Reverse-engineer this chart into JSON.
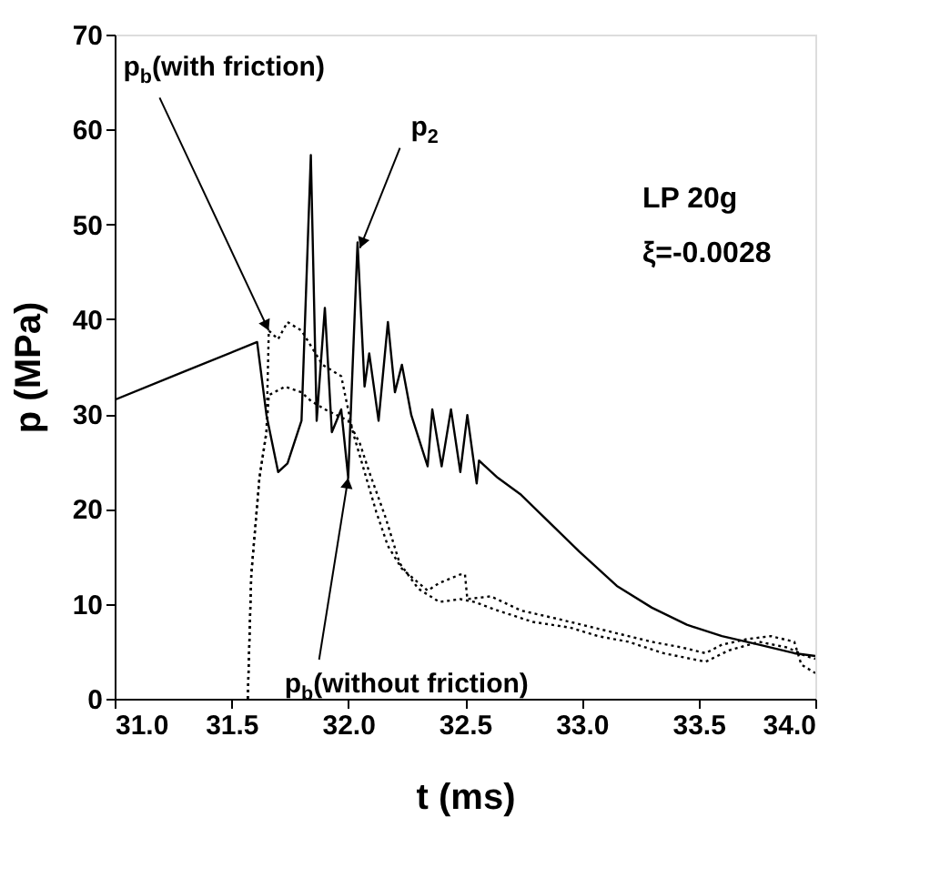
{
  "chart_data": {
    "type": "line",
    "xlabel": "t (ms)",
    "ylabel": "p (MPa)",
    "xlim": [
      31.0,
      34.0
    ],
    "xticks": [
      {
        "value": 31.0,
        "label": "31.0"
      },
      31.5,
      {
        "value": 32.0,
        "label": "32.0"
      },
      32.5,
      {
        "value": 33.0,
        "label": "33.0"
      },
      33.5,
      {
        "value": 34.0,
        "label": "34.0"
      }
    ],
    "ylim": [
      0,
      70
    ],
    "yticks": [
      0,
      10,
      20,
      30,
      40,
      50,
      60,
      70
    ],
    "series": [
      {
        "color": "#000000",
        "line_style": "solid",
        "x": [
          31.0,
          31.3,
          31.61,
          31.65,
          31.7,
          31.74,
          31.8,
          31.84,
          31.865,
          31.9,
          31.93,
          31.97,
          32.0,
          32.04,
          32.07,
          32.09,
          32.13,
          32.17,
          32.2,
          32.23,
          32.27,
          32.34,
          32.36,
          32.4,
          32.44,
          32.48,
          32.51,
          32.55,
          32.56,
          32.64,
          32.74,
          32.84,
          32.99,
          33.15,
          33.3,
          33.45,
          33.6,
          33.76,
          33.91,
          34.0
        ],
        "values": [
          31.5,
          34.5,
          37.6,
          29.9,
          23.9,
          24.8,
          29.3,
          57.3,
          29.3,
          41.2,
          28.1,
          30.5,
          23.3,
          48.1,
          32.9,
          36.4,
          29.3,
          39.7,
          32.3,
          35.2,
          29.9,
          24.5,
          30.5,
          24.5,
          30.5,
          23.9,
          29.9,
          22.7,
          25.1,
          23.3,
          21.5,
          19.1,
          15.5,
          11.9,
          9.6,
          7.8,
          6.6,
          5.7,
          4.8,
          4.5
        ]
      },
      {
        "color": "#000000",
        "line_style": "dotted",
        "x": [
          31.57,
          31.585,
          31.62,
          31.65,
          31.66,
          31.7,
          31.74,
          31.8,
          31.89,
          31.97,
          32.02,
          32.07,
          32.12,
          32.17,
          32.23,
          32.34,
          32.39,
          32.48,
          32.5,
          32.51,
          32.61,
          32.74,
          32.9,
          33.0,
          33.15,
          33.3,
          33.43,
          33.53,
          33.6,
          33.71,
          33.81,
          33.91,
          33.94,
          34.0
        ],
        "values": [
          0,
          13.1,
          23.3,
          28.1,
          38.8,
          37.9,
          39.7,
          38.8,
          35.2,
          34.0,
          28.1,
          23.9,
          19.7,
          16.1,
          13.7,
          11.4,
          12.2,
          13.1,
          13.1,
          10.5,
          10.8,
          9.3,
          8.4,
          7.8,
          6.9,
          6.0,
          5.4,
          4.8,
          5.7,
          6.3,
          6.6,
          6.0,
          3.6,
          2.7
        ]
      },
      {
        "color": "#000000",
        "line_style": "dotted",
        "x": [
          31.57,
          31.585,
          31.62,
          31.65,
          31.66,
          31.73,
          31.8,
          31.84,
          31.9,
          32.0,
          32.05,
          32.09,
          32.16,
          32.22,
          32.3,
          32.39,
          32.48,
          32.54,
          32.64,
          32.79,
          32.95,
          33.07,
          33.2,
          33.35,
          33.53,
          33.63,
          33.76,
          33.88,
          33.96,
          34.0
        ],
        "values": [
          0,
          13.1,
          23.3,
          28.1,
          32.0,
          32.9,
          32.3,
          31.4,
          30.5,
          29.3,
          26.9,
          23.9,
          19.1,
          14.3,
          11.6,
          10.2,
          10.5,
          10.2,
          9.3,
          8.1,
          7.5,
          6.6,
          6.0,
          4.8,
          3.9,
          5.1,
          6.0,
          5.4,
          4.5,
          4.2
        ]
      }
    ],
    "annotations": [
      {
        "text": "p$_{b}$(with friction)",
        "x": 31.66,
        "y": 38.8
      },
      {
        "text": "p$_{2}$",
        "x": 32.05,
        "y": 47.5
      },
      {
        "text": "p$_{b}$(without friction)",
        "x": 32.0,
        "y": 23.3
      },
      "LP 20g",
      "ξ=-0.0028"
    ]
  }
}
